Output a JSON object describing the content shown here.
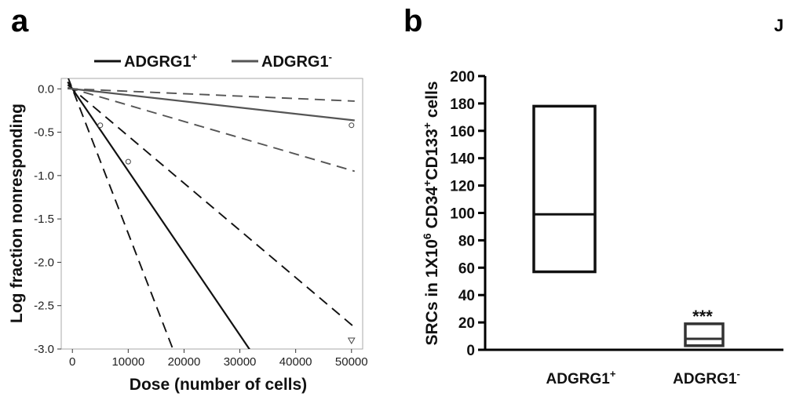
{
  "panel_a_letter": "a",
  "panel_b_letter": "b",
  "edge_glyph": "J",
  "chart_data": [
    {
      "type": "line",
      "xlabel": "Dose (number of cells)",
      "ylabel": "Log fraction nonresponding",
      "xlim": [
        -2000,
        52000
      ],
      "ylim": [
        -3.0,
        0.12
      ],
      "xticks": [
        0,
        10000,
        20000,
        30000,
        40000,
        50000
      ],
      "xtick_labels": [
        "0",
        "10000",
        "20000",
        "30000",
        "40000",
        "50000"
      ],
      "yticks": [
        0.0,
        -0.5,
        -1.0,
        -1.5,
        -2.0,
        -2.5,
        -3.0
      ],
      "ytick_labels": [
        "0.0",
        "-0.5",
        "-1.0",
        "-1.5",
        "-2.0",
        "-2.5",
        "-3.0"
      ],
      "legend": {
        "position": "top",
        "entries": [
          {
            "text": "ADGRG1",
            "sup": "+",
            "color": "#111111"
          },
          {
            "text": "ADGRG1",
            "sup": "-",
            "color": "#555555"
          }
        ]
      },
      "series": [
        {
          "name": "ADGRG1+",
          "style": "solid",
          "color": "#111111",
          "x": [
            0,
            31700
          ],
          "y": [
            0.0,
            -3.0
          ]
        },
        {
          "name": "ADGRG1+",
          "style": "dashed",
          "color": "#111111",
          "x": [
            0,
            18000
          ],
          "y": [
            0.0,
            -3.0
          ]
        },
        {
          "name": "ADGRG1+",
          "style": "dashed",
          "color": "#111111",
          "x": [
            0,
            50000
          ],
          "y": [
            0.0,
            -2.72
          ]
        },
        {
          "name": "ADGRG1-",
          "style": "solid",
          "color": "#555555",
          "x": [
            0,
            50000
          ],
          "y": [
            0.0,
            -0.36
          ]
        },
        {
          "name": "ADGRG1-",
          "style": "dashed",
          "color": "#555555",
          "x": [
            0,
            50000
          ],
          "y": [
            0.0,
            -0.14
          ]
        },
        {
          "name": "ADGRG1-",
          "style": "dashed",
          "color": "#555555",
          "x": [
            0,
            50000
          ],
          "y": [
            0.0,
            -0.94
          ]
        }
      ],
      "points": [
        {
          "x": 5000,
          "y": -0.42,
          "marker": "circle"
        },
        {
          "x": 10000,
          "y": -0.84,
          "marker": "circle"
        },
        {
          "x": 50000,
          "y": -0.42,
          "marker": "circle"
        },
        {
          "x": 50000,
          "y": -2.9,
          "marker": "triangle-down"
        }
      ]
    },
    {
      "type": "box",
      "ylabel_parts": [
        {
          "t": "SRCs in 1X10",
          "sup": false
        },
        {
          "t": "6",
          "sup": true
        },
        {
          "t": " CD34",
          "sup": false
        },
        {
          "t": "+",
          "sup": true
        },
        {
          "t": "CD133",
          "sup": false
        },
        {
          "t": "+",
          "sup": true
        },
        {
          "t": " cells",
          "sup": false
        }
      ],
      "ylim": [
        0,
        200
      ],
      "yticks": [
        0,
        20,
        40,
        60,
        80,
        100,
        120,
        140,
        160,
        180,
        200
      ],
      "ytick_labels": [
        "0",
        "20",
        "40",
        "60",
        "80",
        "100",
        "120",
        "140",
        "160",
        "180",
        "200"
      ],
      "categories": [
        {
          "label": "ADGRG1",
          "sup": "+"
        },
        {
          "label": "ADGRG1",
          "sup": "-"
        }
      ],
      "boxes": [
        {
          "low": 57,
          "mid": 99,
          "high": 178,
          "color": "#111111",
          "annotation": ""
        },
        {
          "low": 3,
          "mid": 8,
          "high": 19,
          "color": "#333333",
          "annotation": "***"
        }
      ]
    }
  ]
}
